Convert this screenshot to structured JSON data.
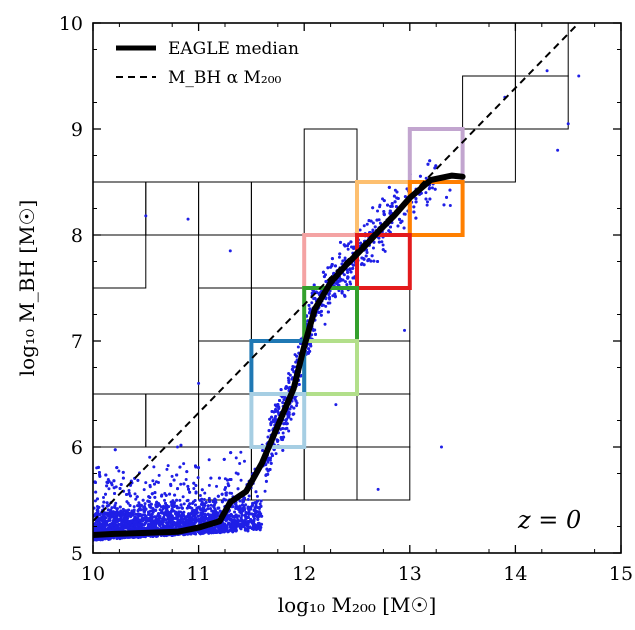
{
  "chart_data": {
    "type": "scatter",
    "xlabel": "log₁₀ M₂₀₀ [M☉]",
    "ylabel": "log₁₀ M_BH [M☉]",
    "xlim": [
      10,
      15
    ],
    "ylim": [
      5,
      10
    ],
    "x_ticks": [
      "10",
      "11",
      "12",
      "13",
      "14",
      "15"
    ],
    "y_ticks": [
      "5",
      "6",
      "7",
      "8",
      "9",
      "10"
    ],
    "grid": false,
    "legend_position": "top-left",
    "annotation": "z = 0",
    "series": [
      {
        "name": "EAGLE median",
        "kind": "median-line",
        "color": "#000000",
        "x": [
          10.0,
          10.2,
          10.5,
          10.8,
          11.0,
          11.2,
          11.3,
          11.45,
          11.6,
          11.75,
          11.9,
          12.0,
          12.1,
          12.25,
          12.4,
          12.55,
          12.7,
          12.85,
          13.0,
          13.2,
          13.4,
          13.5
        ],
        "y": [
          5.17,
          5.18,
          5.19,
          5.2,
          5.24,
          5.3,
          5.48,
          5.58,
          5.85,
          6.2,
          6.55,
          6.95,
          7.3,
          7.55,
          7.72,
          7.87,
          8.03,
          8.18,
          8.35,
          8.52,
          8.56,
          8.55
        ]
      },
      {
        "name": "M_BH α M₂₀₀",
        "kind": "power-law",
        "color": "#000000",
        "x": [
          10.0,
          14.6
        ],
        "y": [
          5.3,
          10.0
        ]
      },
      {
        "name": "",
        "kind": "scatter-points",
        "color": "#1f1fe6",
        "outliers": [
          [
            10.5,
            8.18
          ],
          [
            10.9,
            8.15
          ],
          [
            11.3,
            7.85
          ],
          [
            10.8,
            6.0
          ],
          [
            11.1,
            5.88
          ],
          [
            12.3,
            6.4
          ],
          [
            12.7,
            5.6
          ],
          [
            13.3,
            6.0
          ],
          [
            14.4,
            8.8
          ],
          [
            14.6,
            9.5
          ],
          [
            13.9,
            9.3
          ],
          [
            14.5,
            9.05
          ],
          [
            14.3,
            9.55
          ],
          [
            11.4,
            5.95
          ],
          [
            12.95,
            7.1
          ],
          [
            11.0,
            6.6
          ]
        ]
      }
    ],
    "grid_cells": {
      "edgecolor": "#000000",
      "cell_width": 0.5,
      "cell_height": 0.5,
      "cells": [
        [
          14.0,
          9.5
        ],
        [
          14.0,
          9.0
        ],
        [
          13.5,
          8.5
        ],
        [
          13.5,
          9.0
        ],
        [
          10.0,
          8.0
        ],
        [
          10.5,
          8.0
        ],
        [
          10.0,
          7.5
        ],
        [
          11.0,
          7.5
        ],
        [
          11.5,
          7.5
        ],
        [
          11.0,
          7.0
        ],
        [
          11.5,
          7.0
        ],
        [
          11.0,
          6.5
        ],
        [
          11.0,
          6.0
        ],
        [
          11.5,
          6.5
        ],
        [
          12.5,
          7.0
        ],
        [
          12.5,
          6.5
        ],
        [
          12.0,
          6.0
        ],
        [
          11.5,
          5.5
        ],
        [
          11.0,
          5.5
        ],
        [
          12.0,
          5.5
        ],
        [
          12.5,
          5.5
        ],
        [
          10.0,
          6.0
        ],
        [
          10.5,
          6.0
        ],
        [
          12.0,
          8.5
        ],
        [
          11.0,
          8.0
        ],
        [
          12.5,
          6.0
        ],
        [
          11.5,
          8.0
        ]
      ]
    },
    "highlight_cells": {
      "cell_width": 0.5,
      "cell_height": 0.5,
      "cells": [
        {
          "x": 13.0,
          "y": 8.5,
          "color": "#c2a5cf"
        },
        {
          "x": 12.5,
          "y": 8.0,
          "color": "#fdbf6f"
        },
        {
          "x": 13.0,
          "y": 8.0,
          "color": "#ff7f00"
        },
        {
          "x": 12.0,
          "y": 7.5,
          "color": "#f4a3a3"
        },
        {
          "x": 12.5,
          "y": 7.5,
          "color": "#e31a1c"
        },
        {
          "x": 12.0,
          "y": 7.0,
          "color": "#33a02c"
        },
        {
          "x": 12.0,
          "y": 6.5,
          "color": "#b2df8a"
        },
        {
          "x": 11.5,
          "y": 6.5,
          "color": "#1f78b4"
        },
        {
          "x": 11.5,
          "y": 6.0,
          "color": "#a6cee3"
        }
      ]
    }
  }
}
